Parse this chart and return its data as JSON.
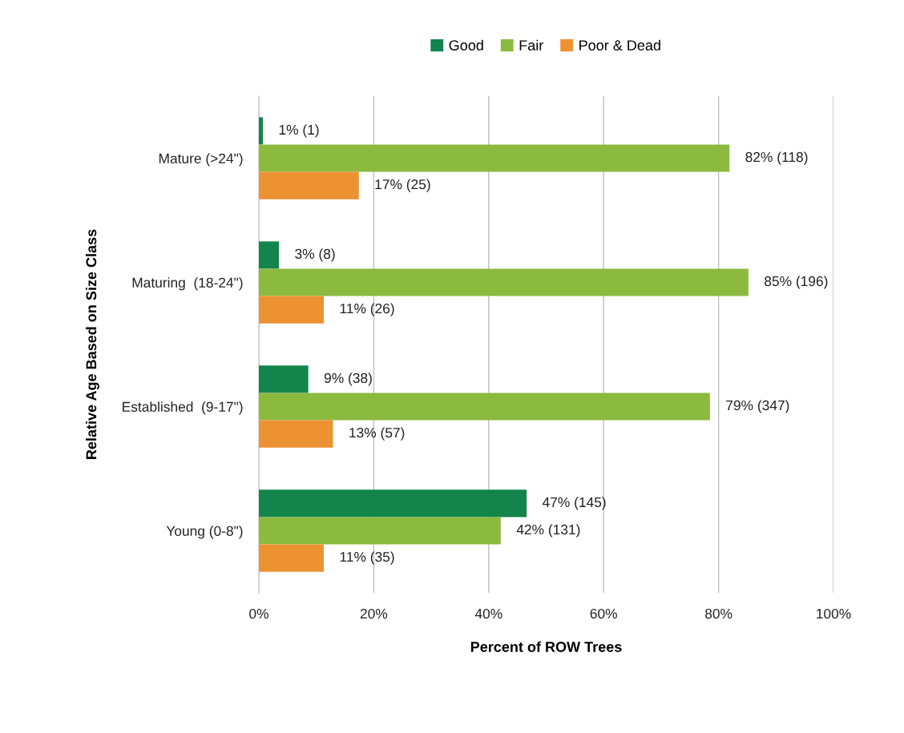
{
  "chart_data": {
    "type": "bar",
    "orientation": "horizontal",
    "xlabel": "Percent of ROW Trees",
    "ylabel": "Relative Age Based on Size Class",
    "categories": [
      "Mature (>24\")",
      "Maturing  (18-24\")",
      "Established  (9-17\")",
      "Young (0-8\")"
    ],
    "series": [
      {
        "name": "Good",
        "color": "#13844b",
        "values": [
          0.7,
          3.5,
          8.6,
          46.6
        ],
        "value_labels": [
          "1% (1)",
          "3% (8)",
          "9% (38)",
          "47% (145)"
        ]
      },
      {
        "name": "Fair",
        "color": "#8bba3f",
        "values": [
          81.9,
          85.2,
          78.5,
          42.1
        ],
        "value_labels": [
          "82% (118)",
          "85% (196)",
          "79% (347)",
          "42% (131)"
        ]
      },
      {
        "name": "Poor & Dead",
        "color": "#ed9232",
        "values": [
          17.4,
          11.3,
          12.9,
          11.3
        ],
        "value_labels": [
          "17% (25)",
          "11% (26)",
          "13% (57)",
          "11% (35)"
        ]
      }
    ],
    "xlim": [
      0,
      100
    ],
    "xticks": [
      {
        "value": 0,
        "label": "0%"
      },
      {
        "value": 20,
        "label": "20%"
      },
      {
        "value": 40,
        "label": "40%"
      },
      {
        "value": 60,
        "label": "60%"
      },
      {
        "value": 80,
        "label": "80%"
      },
      {
        "value": 100,
        "label": "100%"
      }
    ],
    "grid": "x",
    "legend": "top"
  }
}
